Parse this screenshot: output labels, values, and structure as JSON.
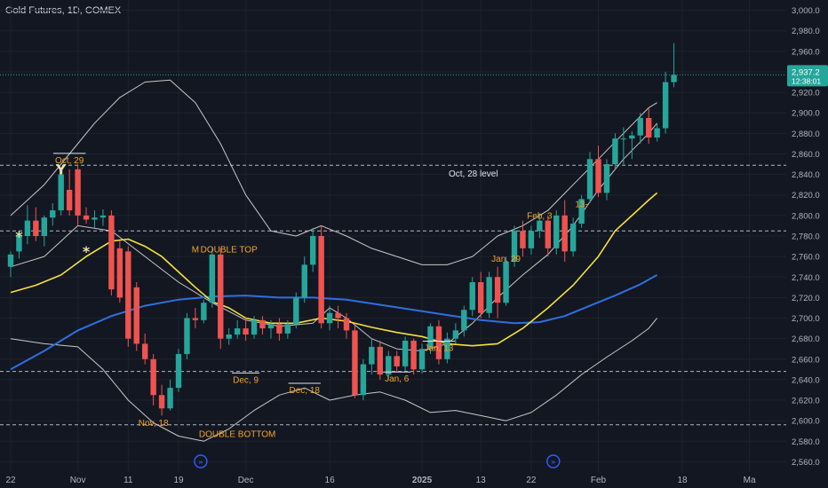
{
  "header": {
    "title": "Gold Futures, 1D, COMEX"
  },
  "colors": {
    "background": "#131722",
    "text": "#b2b5be",
    "up": "#26a69a",
    "down": "#ef5350",
    "ma_short": "#f5e13b",
    "ma_long": "#2f6fe0",
    "bands": "#c8c8c8",
    "annotation": "#f5a623",
    "level": "#d1d4dc",
    "price_tag": "#26a69a"
  },
  "price_tag": {
    "price": "2,937.2",
    "countdown": "12:38:01"
  },
  "chart_data": {
    "type": "candlestick",
    "ylim": [
      2550,
      3010
    ],
    "ticks_y": [
      "3,000.0",
      "2,980.0",
      "2,960.0",
      "2,940.0",
      "2,920.0",
      "2,900.0",
      "2,880.0",
      "2,860.0",
      "2,840.0",
      "2,820.0",
      "2,800.0",
      "2,780.0",
      "2,760.0",
      "2,740.0",
      "2,720.0",
      "2,700.0",
      "2,680.0",
      "2,660.0",
      "2,640.0",
      "2,620.0",
      "2,600.0",
      "2,580.0",
      "2,560.0"
    ],
    "ticks_x": [
      {
        "label": "22",
        "i": 0
      },
      {
        "label": "Nov",
        "i": 8
      },
      {
        "label": "11",
        "i": 14
      },
      {
        "label": "19",
        "i": 20
      },
      {
        "label": "Dec",
        "i": 28
      },
      {
        "label": "16",
        "i": 38
      },
      {
        "label": "2025",
        "i": 49
      },
      {
        "label": "13",
        "i": 56
      },
      {
        "label": "22",
        "i": 62
      },
      {
        "label": "Feb",
        "i": 70
      },
      {
        "label": "18",
        "i": 80
      },
      {
        "label": "Ma",
        "i": 88
      }
    ],
    "candles": [
      [
        2750,
        2765,
        2740,
        2762
      ],
      [
        2765,
        2785,
        2758,
        2780
      ],
      [
        2780,
        2810,
        2772,
        2795
      ],
      [
        2795,
        2808,
        2775,
        2780
      ],
      [
        2780,
        2800,
        2770,
        2798
      ],
      [
        2798,
        2812,
        2790,
        2805
      ],
      [
        2805,
        2845,
        2800,
        2840
      ],
      [
        2825,
        2845,
        2800,
        2805
      ],
      [
        2845,
        2850,
        2790,
        2800
      ],
      [
        2800,
        2808,
        2792,
        2796
      ],
      [
        2796,
        2805,
        2788,
        2798
      ],
      [
        2798,
        2806,
        2790,
        2800
      ],
      [
        2800,
        2805,
        2722,
        2728
      ],
      [
        2768,
        2775,
        2715,
        2720
      ],
      [
        2765,
        2770,
        2672,
        2680
      ],
      [
        2730,
        2735,
        2668,
        2675
      ],
      [
        2675,
        2685,
        2655,
        2660
      ],
      [
        2660,
        2665,
        2615,
        2625
      ],
      [
        2625,
        2635,
        2605,
        2612
      ],
      [
        2612,
        2640,
        2610,
        2632
      ],
      [
        2632,
        2670,
        2628,
        2665
      ],
      [
        2665,
        2705,
        2660,
        2700
      ],
      [
        2700,
        2710,
        2690,
        2698
      ],
      [
        2698,
        2718,
        2695,
        2715
      ],
      [
        2715,
        2768,
        2710,
        2762
      ],
      [
        2762,
        2768,
        2670,
        2680
      ],
      [
        2680,
        2690,
        2674,
        2684
      ],
      [
        2684,
        2698,
        2680,
        2690
      ],
      [
        2690,
        2700,
        2678,
        2684
      ],
      [
        2684,
        2702,
        2680,
        2698
      ],
      [
        2698,
        2702,
        2684,
        2690
      ],
      [
        2690,
        2698,
        2680,
        2694
      ],
      [
        2694,
        2700,
        2678,
        2685
      ],
      [
        2685,
        2698,
        2680,
        2694
      ],
      [
        2694,
        2725,
        2690,
        2720
      ],
      [
        2720,
        2760,
        2715,
        2752
      ],
      [
        2752,
        2788,
        2745,
        2780
      ],
      [
        2780,
        2790,
        2690,
        2695
      ],
      [
        2695,
        2712,
        2688,
        2705
      ],
      [
        2705,
        2712,
        2690,
        2700
      ],
      [
        2700,
        2705,
        2680,
        2688
      ],
      [
        2688,
        2693,
        2622,
        2625
      ],
      [
        2625,
        2660,
        2620,
        2655
      ],
      [
        2655,
        2680,
        2645,
        2672
      ],
      [
        2672,
        2678,
        2640,
        2645
      ],
      [
        2645,
        2668,
        2640,
        2663
      ],
      [
        2663,
        2668,
        2648,
        2653
      ],
      [
        2653,
        2682,
        2648,
        2678
      ],
      [
        2678,
        2680,
        2645,
        2650
      ],
      [
        2650,
        2675,
        2646,
        2670
      ],
      [
        2670,
        2695,
        2665,
        2692
      ],
      [
        2692,
        2698,
        2655,
        2660
      ],
      [
        2660,
        2686,
        2656,
        2680
      ],
      [
        2680,
        2695,
        2675,
        2688
      ],
      [
        2688,
        2712,
        2682,
        2708
      ],
      [
        2708,
        2740,
        2702,
        2735
      ],
      [
        2735,
        2745,
        2700,
        2705
      ],
      [
        2705,
        2745,
        2700,
        2740
      ],
      [
        2740,
        2750,
        2700,
        2715
      ],
      [
        2715,
        2760,
        2712,
        2755
      ],
      [
        2755,
        2790,
        2750,
        2785
      ],
      [
        2785,
        2795,
        2760,
        2768
      ],
      [
        2768,
        2790,
        2762,
        2785
      ],
      [
        2785,
        2802,
        2778,
        2795
      ],
      [
        2795,
        2800,
        2760,
        2768
      ],
      [
        2768,
        2805,
        2762,
        2800
      ],
      [
        2800,
        2815,
        2755,
        2765
      ],
      [
        2765,
        2798,
        2760,
        2792
      ],
      [
        2792,
        2820,
        2788,
        2816
      ],
      [
        2816,
        2862,
        2812,
        2855
      ],
      [
        2855,
        2868,
        2818,
        2822
      ],
      [
        2822,
        2855,
        2815,
        2850
      ],
      [
        2850,
        2880,
        2845,
        2875
      ],
      [
        2875,
        2886,
        2850,
        2875
      ],
      [
        2875,
        2882,
        2855,
        2878
      ],
      [
        2878,
        2900,
        2870,
        2895
      ],
      [
        2895,
        2905,
        2870,
        2876
      ],
      [
        2876,
        2890,
        2872,
        2885
      ],
      [
        2885,
        2940,
        2880,
        2930
      ],
      [
        2930,
        2968,
        2925,
        2937
      ]
    ],
    "ma_short": [
      [
        0,
        2725
      ],
      [
        3,
        2732
      ],
      [
        6,
        2742
      ],
      [
        9,
        2760
      ],
      [
        12,
        2775
      ],
      [
        14,
        2777
      ],
      [
        16,
        2770
      ],
      [
        18,
        2760
      ],
      [
        20,
        2745
      ],
      [
        22,
        2730
      ],
      [
        24,
        2716
      ],
      [
        26,
        2710
      ],
      [
        28,
        2700
      ],
      [
        31,
        2695
      ],
      [
        34,
        2695
      ],
      [
        37,
        2700
      ],
      [
        40,
        2697
      ],
      [
        43,
        2691
      ],
      [
        46,
        2686
      ],
      [
        49,
        2682
      ],
      [
        52,
        2675
      ],
      [
        55,
        2673
      ],
      [
        58,
        2675
      ],
      [
        61,
        2690
      ],
      [
        64,
        2710
      ],
      [
        67,
        2732
      ],
      [
        70,
        2760
      ],
      [
        72,
        2785
      ],
      [
        74,
        2800
      ],
      [
        76,
        2815
      ],
      [
        77,
        2822
      ]
    ],
    "ma_long": [
      [
        0,
        2650
      ],
      [
        4,
        2668
      ],
      [
        8,
        2688
      ],
      [
        12,
        2702
      ],
      [
        16,
        2712
      ],
      [
        20,
        2718
      ],
      [
        24,
        2721
      ],
      [
        28,
        2722
      ],
      [
        32,
        2720
      ],
      [
        36,
        2720
      ],
      [
        40,
        2718
      ],
      [
        44,
        2713
      ],
      [
        48,
        2708
      ],
      [
        52,
        2703
      ],
      [
        56,
        2698
      ],
      [
        60,
        2695
      ],
      [
        63,
        2696
      ],
      [
        66,
        2702
      ],
      [
        69,
        2712
      ],
      [
        72,
        2722
      ],
      [
        75,
        2733
      ],
      [
        77,
        2742
      ]
    ],
    "band_upper": [
      [
        0,
        2800
      ],
      [
        4,
        2830
      ],
      [
        7,
        2860
      ],
      [
        10,
        2890
      ],
      [
        13,
        2915
      ],
      [
        16,
        2930
      ],
      [
        19,
        2932
      ],
      [
        22,
        2910
      ],
      [
        25,
        2870
      ],
      [
        28,
        2820
      ],
      [
        31,
        2785
      ],
      [
        34,
        2780
      ],
      [
        37,
        2790
      ],
      [
        40,
        2780
      ],
      [
        43,
        2768
      ],
      [
        46,
        2760
      ],
      [
        49,
        2752
      ],
      [
        52,
        2752
      ],
      [
        55,
        2760
      ],
      [
        58,
        2780
      ],
      [
        61,
        2790
      ],
      [
        64,
        2805
      ],
      [
        67,
        2830
      ],
      [
        70,
        2855
      ],
      [
        73,
        2880
      ],
      [
        76,
        2905
      ],
      [
        77,
        2910
      ]
    ],
    "band_mid": [
      [
        0,
        2750
      ],
      [
        4,
        2760
      ],
      [
        8,
        2790
      ],
      [
        12,
        2785
      ],
      [
        16,
        2760
      ],
      [
        20,
        2735
      ],
      [
        24,
        2715
      ],
      [
        28,
        2698
      ],
      [
        32,
        2692
      ],
      [
        36,
        2695
      ],
      [
        38,
        2710
      ],
      [
        40,
        2700
      ],
      [
        43,
        2680
      ],
      [
        46,
        2670
      ],
      [
        49,
        2668
      ],
      [
        52,
        2675
      ],
      [
        55,
        2695
      ],
      [
        58,
        2720
      ],
      [
        61,
        2742
      ],
      [
        64,
        2762
      ],
      [
        67,
        2790
      ],
      [
        70,
        2825
      ],
      [
        73,
        2855
      ],
      [
        76,
        2880
      ],
      [
        77,
        2890
      ]
    ],
    "band_lower": [
      [
        0,
        2680
      ],
      [
        4,
        2675
      ],
      [
        8,
        2672
      ],
      [
        11,
        2650
      ],
      [
        14,
        2620
      ],
      [
        17,
        2598
      ],
      [
        20,
        2585
      ],
      [
        23,
        2580
      ],
      [
        26,
        2592
      ],
      [
        29,
        2610
      ],
      [
        32,
        2625
      ],
      [
        35,
        2632
      ],
      [
        38,
        2620
      ],
      [
        41,
        2625
      ],
      [
        44,
        2628
      ],
      [
        47,
        2620
      ],
      [
        50,
        2608
      ],
      [
        53,
        2610
      ],
      [
        56,
        2605
      ],
      [
        59,
        2600
      ],
      [
        62,
        2608
      ],
      [
        65,
        2625
      ],
      [
        68,
        2645
      ],
      [
        71,
        2662
      ],
      [
        74,
        2678
      ],
      [
        76,
        2690
      ],
      [
        77,
        2700
      ]
    ],
    "levels": [
      {
        "label": "Oct, 28 level",
        "price": 2849
      },
      {
        "price": 2785
      },
      {
        "price": 2648
      },
      {
        "price": 2596
      }
    ],
    "last_price_line": 2937,
    "annotations": [
      {
        "text": "Oct, 29",
        "i": 7,
        "price": 2851,
        "over": true
      },
      {
        "text": "DOUBLE TOP",
        "i": 26,
        "price": 2764
      },
      {
        "text": "M",
        "i": 22,
        "price": 2764
      },
      {
        "text": "Nov, 18",
        "i": 17,
        "price": 2595
      },
      {
        "text": "DOUBLE BOTTOM",
        "i": 27,
        "price": 2584
      },
      {
        "text": "Dec, 9",
        "i": 28,
        "price": 2637,
        "over": true
      },
      {
        "text": "Dec, 18",
        "i": 35,
        "price": 2627,
        "over": true
      },
      {
        "text": "Jan, 6",
        "i": 46,
        "price": 2638,
        "over": true
      },
      {
        "text": "Jan, 13",
        "i": 51,
        "price": 2668,
        "over": true
      },
      {
        "text": "Jan, 29",
        "i": 59,
        "price": 2755
      },
      {
        "text": "Feb, 3",
        "i": 63,
        "price": 2797
      },
      {
        "text": "13-",
        "i": 68,
        "price": 2808
      }
    ],
    "markers": [
      {
        "symbol": "*",
        "i": 1,
        "price": 2775
      },
      {
        "symbol": "*",
        "i": 9,
        "price": 2760
      },
      {
        "symbol": "Y",
        "i": 6,
        "price": 2840
      }
    ],
    "event_icons": [
      22,
      64
    ]
  }
}
